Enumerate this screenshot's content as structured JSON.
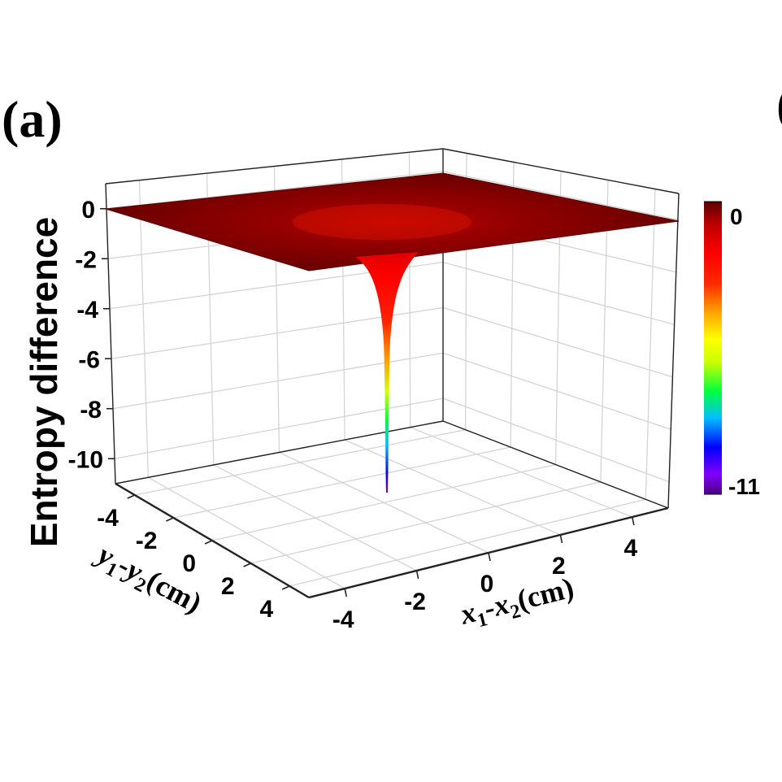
{
  "panel_label": "(a)",
  "stray_mark": "(",
  "chart_data": {
    "type": "surface3d",
    "title": "",
    "zlabel": "Entropy difference",
    "xlabel": {
      "main": "x",
      "sub1": "1",
      "dash": "-x",
      "sub2": "2",
      "unit": "(cm)"
    },
    "ylabel": {
      "main": "y",
      "sub1": "1",
      "dash": "-y",
      "sub2": "2",
      "unit": "(cm)"
    },
    "x_ticks": [
      "-4",
      "-2",
      "0",
      "2",
      "4"
    ],
    "y_ticks": [
      "-4",
      "-2",
      "0",
      "2",
      "4"
    ],
    "z_ticks": [
      "0",
      "-2",
      "-4",
      "-6",
      "-8",
      "-10"
    ],
    "xlim": [
      -5,
      5
    ],
    "ylim": [
      -5,
      5
    ],
    "zlim": [
      -11,
      1
    ],
    "surface": {
      "plateau_value": 0,
      "minimum_value": -11,
      "minimum_at": [
        0,
        0
      ]
    },
    "colorbar": {
      "max_label": "0",
      "min_label": "-11",
      "range": [
        -11,
        0
      ],
      "colors": [
        "#4b0082",
        "#8000ff",
        "#0000ff",
        "#00bfff",
        "#00ff40",
        "#c8ff00",
        "#ffff00",
        "#ffa500",
        "#ff2a00",
        "#ff0000",
        "#c00000",
        "#5a0000"
      ]
    },
    "grid": true
  }
}
